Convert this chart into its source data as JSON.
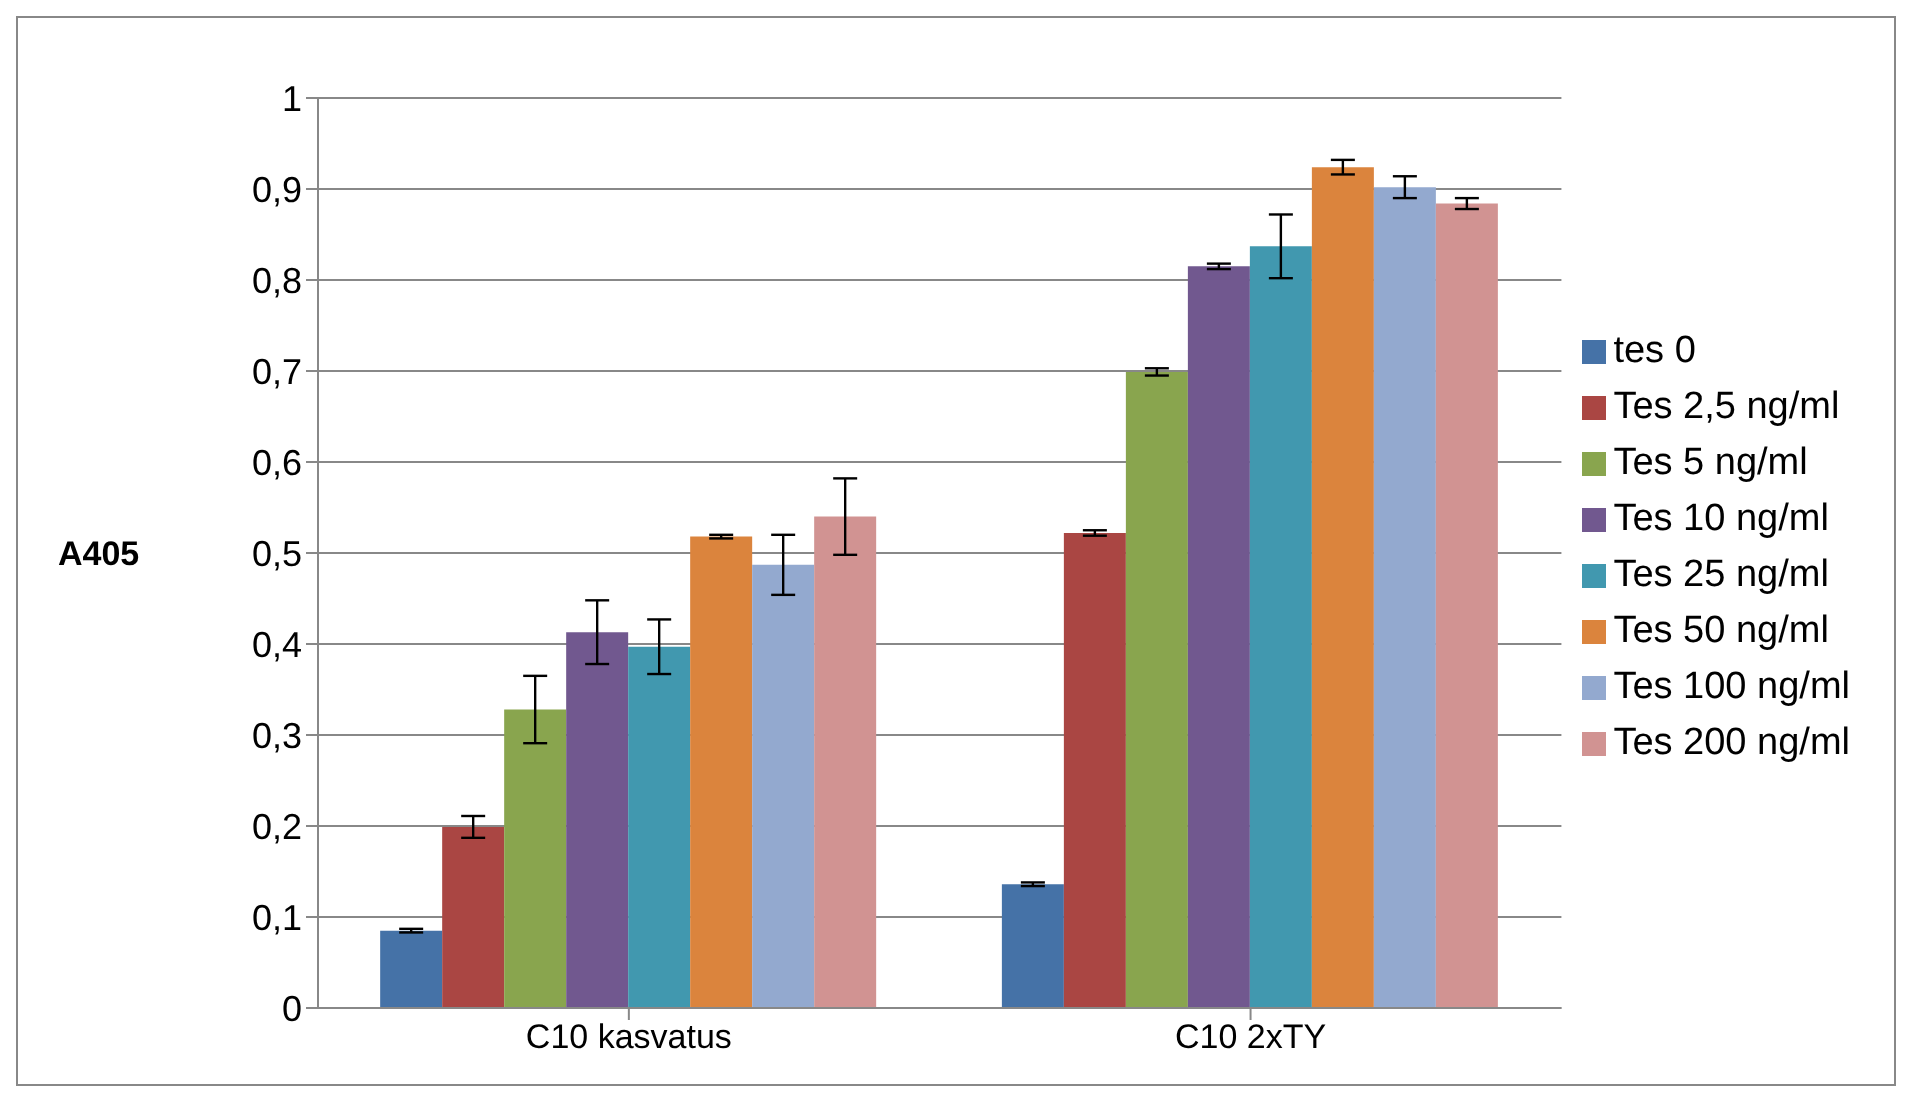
{
  "chart_data": {
    "type": "bar",
    "ylabel": "A405",
    "categories": [
      "C10 kasvatus",
      "C10 2xTY"
    ],
    "series": [
      {
        "name": "tes 0",
        "color": "#4572a7",
        "values": [
          0.085,
          0.136
        ],
        "errors": [
          0.002,
          0.002
        ]
      },
      {
        "name": "Tes 2,5 ng/ml",
        "color": "#aa4643",
        "values": [
          0.199,
          0.522
        ],
        "errors": [
          0.012,
          0.003
        ]
      },
      {
        "name": "Tes 5 ng/ml",
        "color": "#89a54e",
        "values": [
          0.328,
          0.699
        ],
        "errors": [
          0.037,
          0.004
        ]
      },
      {
        "name": "Tes 10 ng/ml",
        "color": "#71588f",
        "values": [
          0.413,
          0.815
        ],
        "errors": [
          0.035,
          0.003
        ]
      },
      {
        "name": "Tes 25 ng/ml",
        "color": "#4198af",
        "values": [
          0.397,
          0.837
        ],
        "errors": [
          0.03,
          0.035
        ]
      },
      {
        "name": "Tes 50 ng/ml",
        "color": "#db843d",
        "values": [
          0.518,
          0.924
        ],
        "errors": [
          0.002,
          0.008
        ]
      },
      {
        "name": "Tes 100 ng/ml",
        "color": "#93a9cf",
        "values": [
          0.487,
          0.902
        ],
        "errors": [
          0.033,
          0.012
        ]
      },
      {
        "name": "Tes 200 ng/ml",
        "color": "#d19392",
        "values": [
          0.54,
          0.884
        ],
        "errors": [
          0.042,
          0.006
        ]
      }
    ],
    "ylim": [
      0,
      1
    ],
    "yticks": [
      0,
      {
        "value": 0.1,
        "label": "0,1"
      },
      {
        "value": 0.2,
        "label": "0,2"
      },
      {
        "value": 0.3,
        "label": "0,3"
      },
      {
        "value": 0.4,
        "label": "0,4"
      },
      {
        "value": 0.5,
        "label": "0,5"
      },
      {
        "value": 0.6,
        "label": "0,6"
      },
      {
        "value": 0.7,
        "label": "0,7"
      },
      {
        "value": 0.8,
        "label": "0,8"
      },
      {
        "value": 0.9,
        "label": "0,9"
      },
      1
    ],
    "grid": "y",
    "legend": "right"
  }
}
